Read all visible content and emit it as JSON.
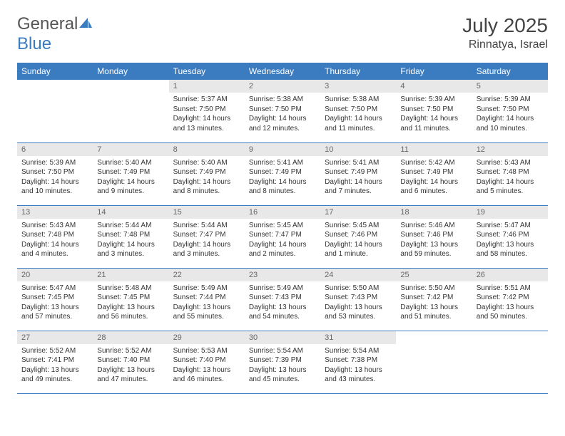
{
  "logo": {
    "part1": "General",
    "part2": "Blue"
  },
  "title": {
    "monthYear": "July 2025",
    "location": "Rinnatya, Israel"
  },
  "dayHeaders": [
    "Sunday",
    "Monday",
    "Tuesday",
    "Wednesday",
    "Thursday",
    "Friday",
    "Saturday"
  ],
  "colors": {
    "accent": "#3b7bbf",
    "daynumBg": "#e8e8e8"
  },
  "startWeekday": 2,
  "days": [
    {
      "n": "1",
      "sr": "5:37 AM",
      "ss": "7:50 PM",
      "dl": "14 hours and 13 minutes."
    },
    {
      "n": "2",
      "sr": "5:38 AM",
      "ss": "7:50 PM",
      "dl": "14 hours and 12 minutes."
    },
    {
      "n": "3",
      "sr": "5:38 AM",
      "ss": "7:50 PM",
      "dl": "14 hours and 11 minutes."
    },
    {
      "n": "4",
      "sr": "5:39 AM",
      "ss": "7:50 PM",
      "dl": "14 hours and 11 minutes."
    },
    {
      "n": "5",
      "sr": "5:39 AM",
      "ss": "7:50 PM",
      "dl": "14 hours and 10 minutes."
    },
    {
      "n": "6",
      "sr": "5:39 AM",
      "ss": "7:50 PM",
      "dl": "14 hours and 10 minutes."
    },
    {
      "n": "7",
      "sr": "5:40 AM",
      "ss": "7:49 PM",
      "dl": "14 hours and 9 minutes."
    },
    {
      "n": "8",
      "sr": "5:40 AM",
      "ss": "7:49 PM",
      "dl": "14 hours and 8 minutes."
    },
    {
      "n": "9",
      "sr": "5:41 AM",
      "ss": "7:49 PM",
      "dl": "14 hours and 8 minutes."
    },
    {
      "n": "10",
      "sr": "5:41 AM",
      "ss": "7:49 PM",
      "dl": "14 hours and 7 minutes."
    },
    {
      "n": "11",
      "sr": "5:42 AM",
      "ss": "7:49 PM",
      "dl": "14 hours and 6 minutes."
    },
    {
      "n": "12",
      "sr": "5:43 AM",
      "ss": "7:48 PM",
      "dl": "14 hours and 5 minutes."
    },
    {
      "n": "13",
      "sr": "5:43 AM",
      "ss": "7:48 PM",
      "dl": "14 hours and 4 minutes."
    },
    {
      "n": "14",
      "sr": "5:44 AM",
      "ss": "7:48 PM",
      "dl": "14 hours and 3 minutes."
    },
    {
      "n": "15",
      "sr": "5:44 AM",
      "ss": "7:47 PM",
      "dl": "14 hours and 3 minutes."
    },
    {
      "n": "16",
      "sr": "5:45 AM",
      "ss": "7:47 PM",
      "dl": "14 hours and 2 minutes."
    },
    {
      "n": "17",
      "sr": "5:45 AM",
      "ss": "7:46 PM",
      "dl": "14 hours and 1 minute."
    },
    {
      "n": "18",
      "sr": "5:46 AM",
      "ss": "7:46 PM",
      "dl": "13 hours and 59 minutes."
    },
    {
      "n": "19",
      "sr": "5:47 AM",
      "ss": "7:46 PM",
      "dl": "13 hours and 58 minutes."
    },
    {
      "n": "20",
      "sr": "5:47 AM",
      "ss": "7:45 PM",
      "dl": "13 hours and 57 minutes."
    },
    {
      "n": "21",
      "sr": "5:48 AM",
      "ss": "7:45 PM",
      "dl": "13 hours and 56 minutes."
    },
    {
      "n": "22",
      "sr": "5:49 AM",
      "ss": "7:44 PM",
      "dl": "13 hours and 55 minutes."
    },
    {
      "n": "23",
      "sr": "5:49 AM",
      "ss": "7:43 PM",
      "dl": "13 hours and 54 minutes."
    },
    {
      "n": "24",
      "sr": "5:50 AM",
      "ss": "7:43 PM",
      "dl": "13 hours and 53 minutes."
    },
    {
      "n": "25",
      "sr": "5:50 AM",
      "ss": "7:42 PM",
      "dl": "13 hours and 51 minutes."
    },
    {
      "n": "26",
      "sr": "5:51 AM",
      "ss": "7:42 PM",
      "dl": "13 hours and 50 minutes."
    },
    {
      "n": "27",
      "sr": "5:52 AM",
      "ss": "7:41 PM",
      "dl": "13 hours and 49 minutes."
    },
    {
      "n": "28",
      "sr": "5:52 AM",
      "ss": "7:40 PM",
      "dl": "13 hours and 47 minutes."
    },
    {
      "n": "29",
      "sr": "5:53 AM",
      "ss": "7:40 PM",
      "dl": "13 hours and 46 minutes."
    },
    {
      "n": "30",
      "sr": "5:54 AM",
      "ss": "7:39 PM",
      "dl": "13 hours and 45 minutes."
    },
    {
      "n": "31",
      "sr": "5:54 AM",
      "ss": "7:38 PM",
      "dl": "13 hours and 43 minutes."
    }
  ],
  "labels": {
    "sunrise": "Sunrise: ",
    "sunset": "Sunset: ",
    "daylight": "Daylight: "
  }
}
